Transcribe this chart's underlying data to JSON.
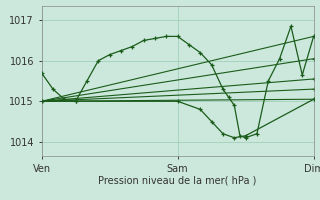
{
  "title": "Pression niveau de la mer( hPa )",
  "ylabel_ticks": [
    1014,
    1015,
    1016,
    1017
  ],
  "ylim": [
    1013.65,
    1017.35
  ],
  "xlim": [
    0,
    48
  ],
  "xtick_positions": [
    0,
    24,
    48
  ],
  "xtick_labels": [
    "Ven",
    "Sam",
    "Dim"
  ],
  "bg_color": "#cce8dc",
  "grid_color": "#99ccb3",
  "line_color": "#1a5c1a",
  "detailed_line": {
    "x": [
      0,
      2,
      4,
      6,
      8,
      10,
      12,
      14,
      16,
      18,
      20,
      22,
      24,
      26,
      28,
      30,
      32,
      33,
      34,
      35,
      36,
      38,
      40,
      42,
      44,
      46,
      48
    ],
    "y": [
      1015.7,
      1015.3,
      1015.05,
      1015.0,
      1015.5,
      1016.0,
      1016.15,
      1016.25,
      1016.35,
      1016.5,
      1016.55,
      1016.6,
      1016.6,
      1016.4,
      1016.2,
      1015.9,
      1015.3,
      1015.1,
      1014.9,
      1014.15,
      1014.1,
      1014.2,
      1015.5,
      1016.05,
      1016.85,
      1015.65,
      1016.6
    ]
  },
  "straight_lines": [
    {
      "x": [
        0,
        48
      ],
      "y": [
        1015.0,
        1015.05
      ]
    },
    {
      "x": [
        0,
        48
      ],
      "y": [
        1015.0,
        1015.3
      ]
    },
    {
      "x": [
        0,
        48
      ],
      "y": [
        1015.0,
        1015.55
      ]
    },
    {
      "x": [
        0,
        48
      ],
      "y": [
        1015.0,
        1016.05
      ]
    },
    {
      "x": [
        0,
        48
      ],
      "y": [
        1015.0,
        1016.6
      ]
    }
  ],
  "dip_line": {
    "x": [
      0,
      6,
      24,
      28,
      30,
      32,
      34,
      36,
      48
    ],
    "y": [
      1015.0,
      1015.0,
      1015.0,
      1014.8,
      1014.5,
      1014.2,
      1014.1,
      1014.15,
      1015.05
    ]
  }
}
